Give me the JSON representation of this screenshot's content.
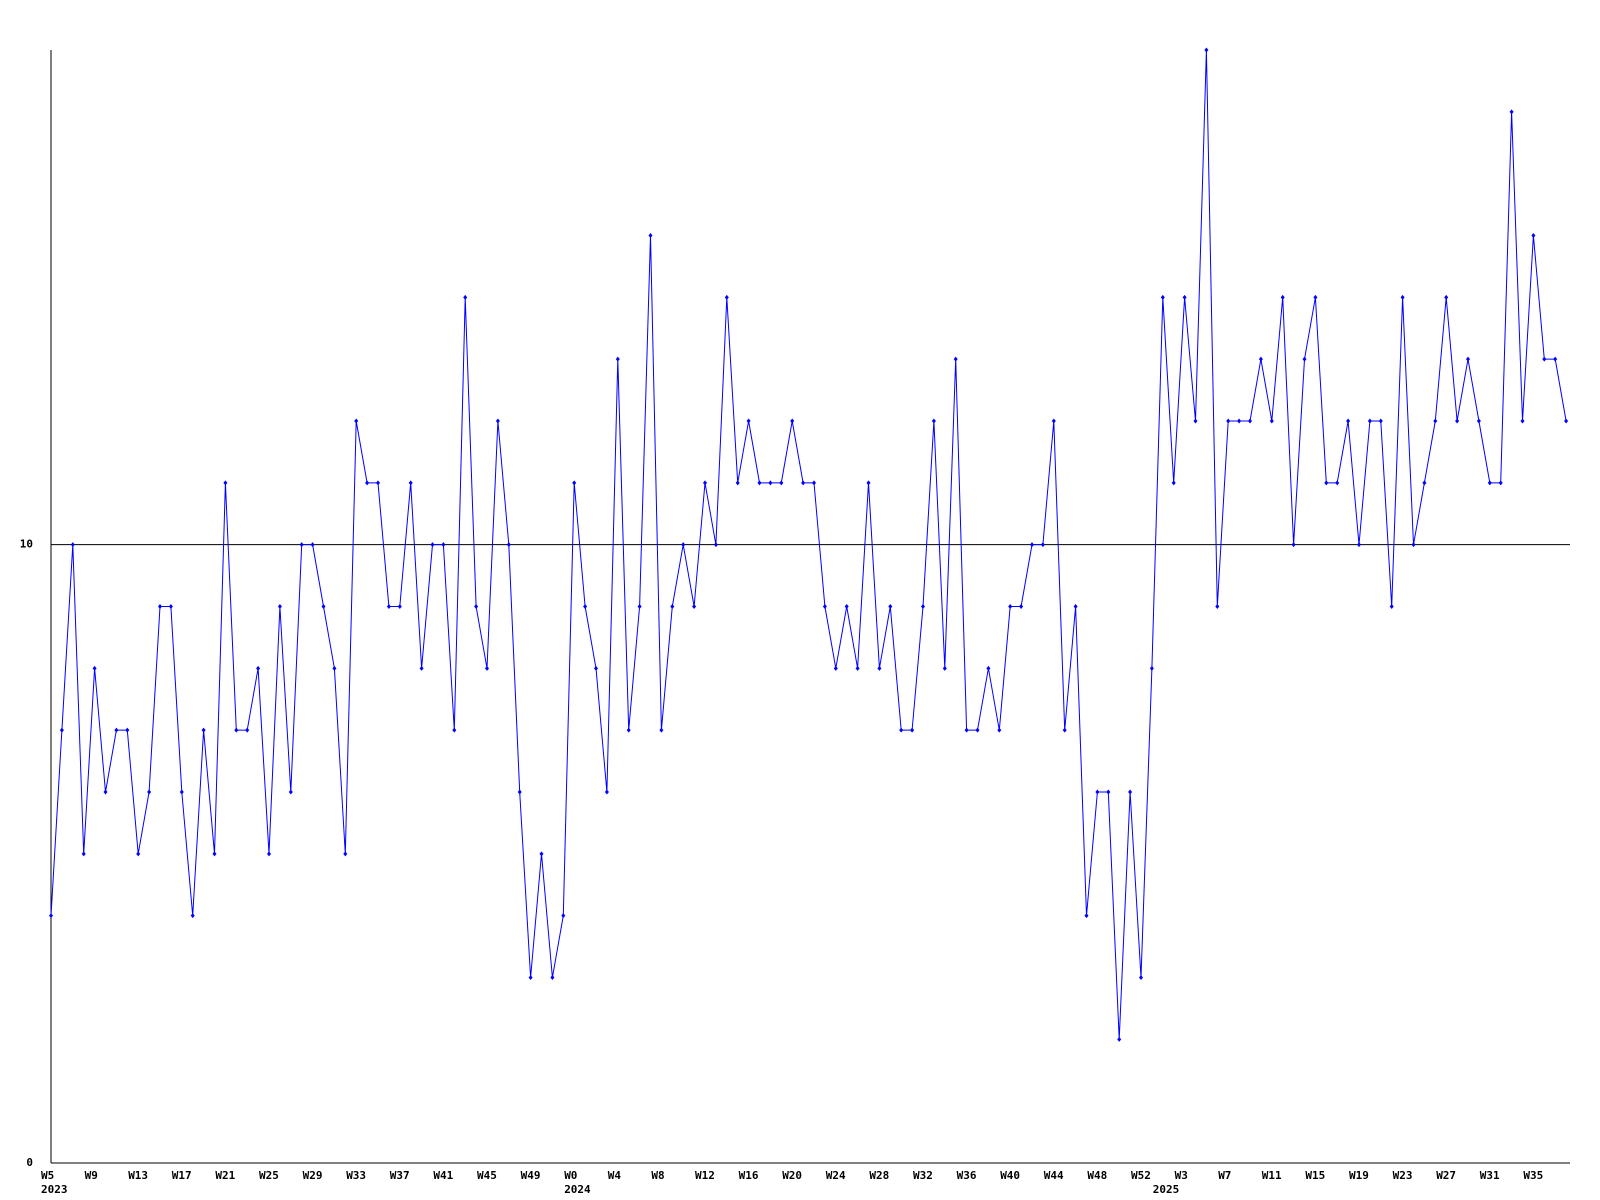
{
  "chart_data": {
    "type": "line",
    "categories": [
      "W5",
      null,
      null,
      null,
      "W9",
      null,
      null,
      null,
      "W13",
      null,
      null,
      null,
      "W17",
      null,
      null,
      null,
      "W21",
      null,
      null,
      null,
      "W25",
      null,
      null,
      null,
      "W29",
      null,
      null,
      null,
      "W33",
      null,
      null,
      null,
      "W37",
      null,
      null,
      null,
      "W41",
      null,
      null,
      null,
      "W45",
      null,
      null,
      null,
      "W49",
      null,
      null,
      null,
      "W0",
      null,
      null,
      null,
      "W4",
      null,
      null,
      null,
      "W8",
      null,
      null,
      null,
      "W12",
      null,
      null,
      null,
      "W16",
      null,
      null,
      null,
      "W20",
      null,
      null,
      null,
      "W24",
      null,
      null,
      null,
      "W28",
      null,
      null,
      null,
      "W32",
      null,
      null,
      null,
      "W36",
      null,
      null,
      null,
      "W40",
      null,
      null,
      null,
      "W44",
      null,
      null,
      null,
      "W48",
      null,
      null,
      null,
      "W52",
      null,
      null,
      null,
      "W3",
      null,
      null,
      null,
      "W7",
      null,
      null,
      null,
      "W11",
      null,
      null,
      null,
      "W15",
      null,
      null,
      null,
      "W19",
      null,
      null,
      null,
      "W23",
      null,
      null,
      null,
      "W27",
      null,
      null,
      null,
      "W31",
      null,
      null,
      null,
      "W35",
      null,
      null,
      null
    ],
    "year_labels": [
      "2023",
      null,
      null,
      null,
      null,
      null,
      null,
      null,
      null,
      null,
      null,
      null,
      null,
      null,
      null,
      null,
      null,
      null,
      null,
      null,
      null,
      null,
      null,
      null,
      null,
      null,
      null,
      null,
      null,
      null,
      null,
      null,
      null,
      null,
      null,
      null,
      null,
      null,
      null,
      null,
      null,
      null,
      null,
      null,
      null,
      null,
      null,
      null,
      "2024",
      null,
      null,
      null,
      null,
      null,
      null,
      null,
      null,
      null,
      null,
      null,
      null,
      null,
      null,
      null,
      null,
      null,
      null,
      null,
      null,
      null,
      null,
      null,
      null,
      null,
      null,
      null,
      null,
      null,
      null,
      null,
      null,
      null,
      null,
      null,
      null,
      null,
      null,
      null,
      null,
      null,
      null,
      null,
      null,
      null,
      null,
      null,
      null,
      null,
      null,
      null,
      null,
      null,
      "2025",
      null,
      null,
      null,
      null,
      null,
      null,
      null,
      null,
      null,
      null,
      null,
      null,
      null,
      null,
      null,
      null,
      null,
      null,
      null,
      null,
      null,
      null,
      null,
      null,
      null,
      null,
      null,
      null,
      null,
      null,
      null,
      null,
      null,
      null,
      null,
      null,
      null
    ],
    "series": [
      {
        "color": "#0000ff",
        "values": [
          4,
          7,
          10,
          5,
          8,
          6,
          7,
          7,
          5,
          6,
          9,
          9,
          6,
          4,
          7,
          5,
          11,
          7,
          7,
          8,
          5,
          9,
          6,
          10,
          10,
          9,
          8,
          5,
          12,
          11,
          11,
          9,
          9,
          11,
          8,
          10,
          10,
          7,
          14,
          9,
          8,
          12,
          10,
          6,
          3,
          5,
          3,
          4,
          11,
          9,
          8,
          6,
          13,
          7,
          9,
          15,
          7,
          9,
          10,
          9,
          11,
          10,
          14,
          11,
          12,
          11,
          11,
          11,
          12,
          11,
          11,
          9,
          8,
          9,
          8,
          11,
          8,
          9,
          7,
          7,
          9,
          12,
          8,
          13,
          7,
          7,
          8,
          7,
          9,
          9,
          10,
          10,
          12,
          7,
          9,
          4,
          6,
          6,
          2,
          6,
          3,
          8,
          14,
          11,
          14,
          12,
          18,
          9,
          12,
          12,
          12,
          13,
          12,
          14,
          10,
          13,
          14,
          11,
          11,
          12,
          10,
          12,
          12,
          9,
          14,
          10,
          11,
          12,
          14,
          12,
          13,
          12,
          11,
          11,
          17,
          12,
          15,
          13,
          13,
          12
        ]
      }
    ],
    "ylim": [
      0,
      18
    ],
    "yticks": [
      0,
      10
    ],
    "grid": true
  }
}
